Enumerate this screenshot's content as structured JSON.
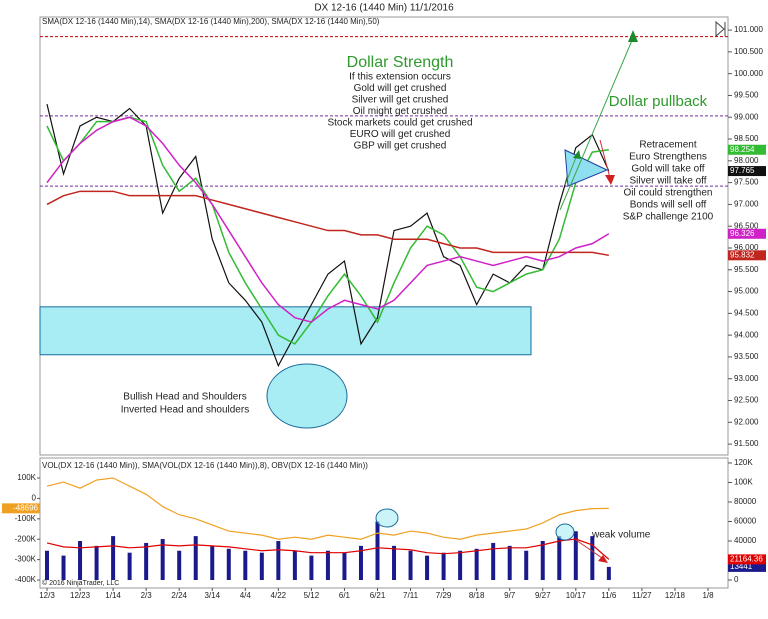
{
  "title": "DX 12-16 (1440 Min)  11/1/2016",
  "copyright": "© 2016 NinjaTrader, LLC",
  "annotations": {
    "strength_title": "Dollar Strength",
    "strength_lines": [
      "If this extension occurs",
      "Gold will get crushed",
      "Silver will get crushed",
      "Oil might get crushed",
      "Stock markets could get crushed",
      "EURO will get crushed",
      "GBP will get crushed"
    ],
    "pullback": "Dollar pullback",
    "retracement_lines": [
      "Retracement",
      "Euro Strengthens",
      "Gold will take off",
      "Silver will take off",
      "Oil could strengthen",
      "Bonds will sell off",
      "S&P challenge 2100"
    ],
    "head_shoulders_lines": [
      "Bullish Head and Shoulders",
      "Inverted Head and shoulders"
    ],
    "weak_volume": "weak volume"
  },
  "chart_data": [
    {
      "type": "line",
      "legend": "SMA(DX 12-16 (1440 Min),14), SMA(DX 12-16 (1440 Min),200), SMA(DX 12-16 (1440 Min),50)",
      "categories": [
        "12/3",
        null,
        "12/23",
        null,
        "1/14",
        null,
        "2/3",
        null,
        "2/24",
        null,
        "3/14",
        null,
        "4/4",
        null,
        "4/22",
        null,
        "5/12",
        null,
        "6/1",
        null,
        "6/21",
        null,
        "7/11",
        null,
        "7/29",
        null,
        "8/18",
        null,
        "9/7",
        null,
        "9/27",
        null,
        "10/17",
        null,
        "11/6",
        null,
        "11/27",
        null,
        "12/18",
        null,
        "1/8"
      ],
      "series": [
        {
          "color": "#111111",
          "values": [
            99.3,
            97.7,
            98.8,
            99.0,
            98.9,
            99.2,
            98.8,
            96.8,
            97.6,
            98.1,
            96.2,
            95.2,
            94.8,
            94.3,
            93.3,
            94.0,
            94.7,
            95.4,
            95.7,
            93.8,
            94.4,
            96.4,
            96.5,
            96.8,
            95.8,
            95.6,
            94.7,
            95.4,
            95.2,
            95.6,
            95.5,
            97.0,
            98.3,
            98.6,
            97.765,
            null,
            null,
            null,
            null,
            null,
            null
          ]
        },
        {
          "color": "#33bb33",
          "values": [
            98.8,
            98.0,
            98.4,
            98.9,
            98.9,
            99.0,
            98.9,
            97.9,
            97.3,
            97.6,
            97.0,
            95.9,
            95.2,
            94.6,
            94.0,
            93.8,
            94.3,
            94.9,
            95.4,
            94.9,
            94.3,
            95.2,
            96.0,
            96.5,
            96.3,
            95.8,
            95.1,
            95.0,
            95.2,
            95.4,
            95.5,
            96.2,
            97.5,
            98.2,
            98.254,
            null,
            null,
            null,
            null,
            null,
            null
          ]
        },
        {
          "color": "#c0261e",
          "values": [
            97.0,
            97.2,
            97.3,
            97.3,
            97.3,
            97.2,
            97.2,
            97.2,
            97.2,
            97.2,
            97.1,
            97.0,
            96.9,
            96.8,
            96.7,
            96.6,
            96.5,
            96.4,
            96.4,
            96.3,
            96.3,
            96.2,
            96.2,
            96.2,
            96.1,
            96.0,
            96.0,
            95.9,
            95.9,
            95.9,
            95.9,
            95.9,
            95.9,
            95.9,
            95.832,
            null,
            null,
            null,
            null,
            null,
            null
          ]
        },
        {
          "color": "#d020c8",
          "values": [
            97.5,
            98.0,
            98.4,
            98.7,
            98.9,
            99.0,
            98.8,
            98.4,
            97.9,
            97.5,
            97.0,
            96.4,
            95.8,
            95.2,
            94.7,
            94.4,
            94.3,
            94.6,
            94.8,
            94.7,
            94.6,
            94.8,
            95.2,
            95.6,
            95.7,
            95.8,
            95.7,
            95.6,
            95.7,
            95.8,
            95.7,
            95.8,
            96.0,
            96.1,
            96.326,
            null,
            null,
            null,
            null,
            null,
            null
          ]
        }
      ],
      "hlines": [
        {
          "value": 100.85,
          "color": "#c00000"
        },
        {
          "value": 99.03,
          "color": "#7030a0"
        },
        {
          "value": 97.42,
          "color": "#7030a0"
        }
      ],
      "zone": [
        93.55,
        94.65
      ],
      "ylim": [
        91.25,
        101.3
      ],
      "yticks": [
        {
          "value": 91.5,
          "label": "91.500"
        },
        {
          "value": 92,
          "label": "92.000"
        },
        {
          "value": 92.5,
          "label": "92.500"
        },
        {
          "value": 93,
          "label": "93.000"
        },
        {
          "value": 93.5,
          "label": "93.500"
        },
        {
          "value": 94,
          "label": "94.000"
        },
        {
          "value": 94.5,
          "label": "94.500"
        },
        {
          "value": 95,
          "label": "95.000"
        },
        {
          "value": 95.5,
          "label": "95.500"
        },
        {
          "value": 96,
          "label": "96.000"
        },
        {
          "value": 96.5,
          "label": "96.500"
        },
        {
          "value": 97,
          "label": "97.000"
        },
        {
          "value": 97.5,
          "label": "97.500"
        },
        {
          "value": 98,
          "label": "98.000"
        },
        {
          "value": 98.5,
          "label": "98.500"
        },
        {
          "value": 99,
          "label": "99.000"
        },
        {
          "value": 99.5,
          "label": "99.500"
        },
        {
          "value": 100,
          "label": "100.000"
        },
        {
          "value": 100.5,
          "label": "100.500"
        },
        {
          "value": 101,
          "label": "101.000"
        }
      ]
    },
    {
      "type": "bar",
      "legend": "VOL(DX 12-16 (1440 Min)), SMA(VOL(DX 12-16 (1440 Min)),8), OBV(DX 12-16 (1440 Min))",
      "series": [
        {
          "color": "#1a1a8c",
          "axis": "y2",
          "values": [
            30000,
            25000,
            40000,
            35000,
            45000,
            28000,
            38000,
            42000,
            30000,
            45000,
            35000,
            32000,
            30000,
            28000,
            40000,
            30000,
            25000,
            30000,
            28000,
            35000,
            60000,
            35000,
            30000,
            25000,
            28000,
            30000,
            32000,
            38000,
            35000,
            30000,
            40000,
            45000,
            50000,
            45000,
            13441,
            null,
            null,
            null,
            null,
            null,
            null
          ]
        },
        {
          "color": "#e00000",
          "axis": "y2",
          "values": [
            38000,
            34000,
            33000,
            34000,
            35000,
            33000,
            34000,
            36000,
            35000,
            36000,
            35000,
            34000,
            32000,
            30000,
            31000,
            30000,
            28000,
            28000,
            28000,
            30000,
            33000,
            32000,
            31000,
            28000,
            27000,
            28000,
            30000,
            32000,
            33000,
            33000,
            36000,
            40000,
            42000,
            36000,
            21164.36,
            null,
            null,
            null,
            null,
            null,
            null
          ]
        },
        {
          "color": "#f0a020",
          "values": [
            60000,
            80000,
            50000,
            90000,
            100000,
            60000,
            20000,
            -40000,
            -80000,
            -100000,
            -130000,
            -160000,
            -170000,
            -180000,
            -200000,
            -190000,
            -200000,
            -180000,
            -190000,
            -200000,
            -170000,
            -180000,
            -160000,
            -170000,
            -190000,
            -200000,
            -180000,
            -170000,
            -160000,
            -150000,
            -120000,
            -80000,
            -60000,
            -50000,
            -48696,
            null,
            null,
            null,
            null,
            null,
            null
          ]
        }
      ],
      "ylim": [
        -439000,
        198000
      ],
      "yticks": [
        {
          "value": -400000,
          "label": "-400K"
        },
        {
          "value": -300000,
          "label": "-300K"
        },
        {
          "value": -200000,
          "label": "-200K"
        },
        {
          "value": -100000,
          "label": "-100K"
        },
        0,
        {
          "value": 100000,
          "label": "100K"
        }
      ],
      "y2lim": [
        -8200,
        125100
      ],
      "y2ticks": [
        0,
        20000,
        40000,
        60000,
        80000,
        {
          "value": 100000,
          "label": "100K"
        },
        {
          "value": 120000,
          "label": "120K"
        }
      ]
    }
  ]
}
